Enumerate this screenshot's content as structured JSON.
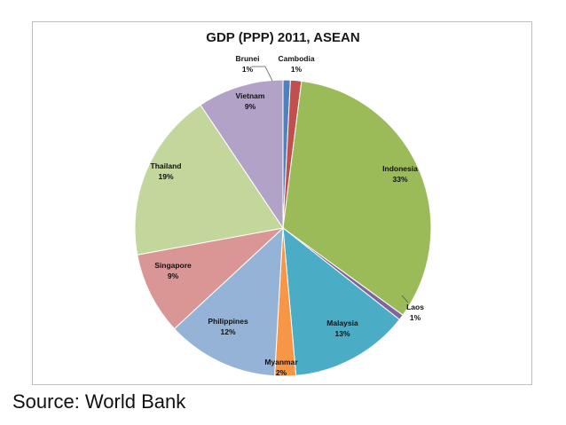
{
  "chart_data": {
    "type": "pie",
    "title": "GDP (PPP) 2011, ASEAN",
    "start_angle_deg": 0,
    "direction": "clockwise",
    "slices": [
      {
        "name": "Brunei",
        "value": 0.8,
        "label": "1%",
        "color": "#4f81bd"
      },
      {
        "name": "Cambodia",
        "value": 1.2,
        "label": "1%",
        "color": "#c0504d"
      },
      {
        "name": "Indonesia",
        "value": 33.0,
        "label": "33%",
        "color": "#9bbb59"
      },
      {
        "name": "Laos",
        "value": 0.6,
        "label": "1%",
        "color": "#8064a2"
      },
      {
        "name": "Malaysia",
        "value": 13.0,
        "label": "13%",
        "color": "#4bacc6"
      },
      {
        "name": "Myanmar",
        "value": 2.3,
        "label": "2%",
        "color": "#f79646"
      },
      {
        "name": "Philippines",
        "value": 12.2,
        "label": "12%",
        "color": "#95b3d7"
      },
      {
        "name": "Singapore",
        "value": 9.0,
        "label": "9%",
        "color": "#d99694"
      },
      {
        "name": "Thailand",
        "value": 18.5,
        "label": "19%",
        "color": "#c3d69b"
      },
      {
        "name": "Vietnam",
        "value": 9.4,
        "label": "9%",
        "color": "#b2a2c7"
      }
    ]
  },
  "caption": {
    "source": "Source: World Bank"
  }
}
